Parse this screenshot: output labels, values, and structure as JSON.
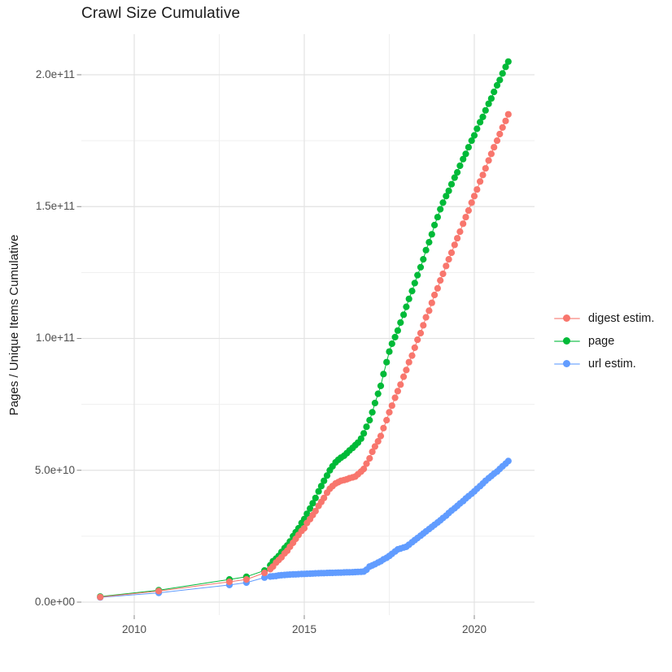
{
  "title": "Crawl Size Cumulative",
  "y_axis": {
    "label": "Pages / Unique Items Cumulative",
    "tick_labels": [
      "0.0e+00",
      "5.0e+10",
      "1.0e+11",
      "1.5e+11",
      "2.0e+11"
    ]
  },
  "x_axis": {
    "tick_labels": [
      "2010",
      "2015",
      "2020"
    ]
  },
  "legend": {
    "items": [
      {
        "label": "digest estim.",
        "color": "#F8766D"
      },
      {
        "label": "page",
        "color": "#00BA38"
      },
      {
        "label": "url estim.",
        "color": "#619CFF"
      }
    ]
  },
  "chart_data": {
    "type": "line",
    "title": "Crawl Size Cumulative",
    "xlabel": "",
    "ylabel": "Pages / Unique Items Cumulative",
    "x_unit": "year (decimal)",
    "value_unit": "billions of items (1e9)",
    "xlim": [
      2008.45,
      2021.8
    ],
    "ylim_billions": [
      0,
      216
    ],
    "x_major_ticks": [
      2010,
      2015,
      2020
    ],
    "x_minor_ticks": [
      2012.5,
      2017.5
    ],
    "y_major_ticks_billions": [
      0,
      50,
      100,
      150,
      200
    ],
    "y_minor_ticks_billions": [
      25,
      75,
      125,
      175
    ],
    "grid": true,
    "legend_position": "right",
    "marker": "point",
    "draw_order": [
      1,
      2,
      0
    ],
    "series": [
      {
        "name": "digest estim.",
        "color": "#F8766D",
        "points": [
          [
            2009.0,
            1.9
          ],
          [
            2010.72,
            4.2
          ],
          [
            2012.8,
            7.7
          ],
          [
            2013.3,
            8.6
          ],
          [
            2013.83,
            11.1
          ],
          [
            2014.0,
            12.5
          ],
          [
            2014.08,
            13.5
          ],
          [
            2014.17,
            15.0
          ],
          [
            2014.25,
            16.0
          ],
          [
            2014.33,
            17.0
          ],
          [
            2014.42,
            18.5
          ],
          [
            2014.5,
            19.5
          ],
          [
            2014.58,
            21.0
          ],
          [
            2014.67,
            22.5
          ],
          [
            2014.75,
            24.0
          ],
          [
            2014.83,
            25.5
          ],
          [
            2014.92,
            27.0
          ],
          [
            2015.0,
            28.0
          ],
          [
            2015.08,
            30.0
          ],
          [
            2015.17,
            31.5
          ],
          [
            2015.25,
            33.0
          ],
          [
            2015.33,
            34.5
          ],
          [
            2015.42,
            36.5
          ],
          [
            2015.5,
            38.0
          ],
          [
            2015.58,
            39.5
          ],
          [
            2015.67,
            41.5
          ],
          [
            2015.75,
            43.0
          ],
          [
            2015.83,
            44.0
          ],
          [
            2015.92,
            45.0
          ],
          [
            2016.0,
            45.5
          ],
          [
            2016.08,
            46.0
          ],
          [
            2016.17,
            46.3
          ],
          [
            2016.25,
            46.6
          ],
          [
            2016.33,
            47.0
          ],
          [
            2016.42,
            47.3
          ],
          [
            2016.5,
            47.6
          ],
          [
            2016.58,
            48.5
          ],
          [
            2016.67,
            49.5
          ],
          [
            2016.75,
            50.5
          ],
          [
            2016.83,
            52.5
          ],
          [
            2016.92,
            54.5
          ],
          [
            2017.0,
            57.0
          ],
          [
            2017.08,
            59.0
          ],
          [
            2017.17,
            61.0
          ],
          [
            2017.25,
            63.0
          ],
          [
            2017.33,
            66.0
          ],
          [
            2017.42,
            69.0
          ],
          [
            2017.5,
            72.0
          ],
          [
            2017.58,
            74.5
          ],
          [
            2017.67,
            77.5
          ],
          [
            2017.75,
            80.0
          ],
          [
            2017.83,
            82.5
          ],
          [
            2017.92,
            85.5
          ],
          [
            2018.0,
            88.0
          ],
          [
            2018.08,
            91.0
          ],
          [
            2018.17,
            93.5
          ],
          [
            2018.25,
            96.5
          ],
          [
            2018.33,
            99.5
          ],
          [
            2018.42,
            102.0
          ],
          [
            2018.5,
            105.0
          ],
          [
            2018.58,
            108.0
          ],
          [
            2018.67,
            110.5
          ],
          [
            2018.75,
            113.5
          ],
          [
            2018.83,
            116.5
          ],
          [
            2018.92,
            119.0
          ],
          [
            2019.0,
            122.0
          ],
          [
            2019.08,
            124.5
          ],
          [
            2019.17,
            127.5
          ],
          [
            2019.25,
            130.0
          ],
          [
            2019.33,
            132.5
          ],
          [
            2019.42,
            135.5
          ],
          [
            2019.5,
            138.0
          ],
          [
            2019.58,
            140.5
          ],
          [
            2019.67,
            143.5
          ],
          [
            2019.75,
            146.0
          ],
          [
            2019.83,
            148.5
          ],
          [
            2019.92,
            151.5
          ],
          [
            2020.0,
            154.0
          ],
          [
            2020.08,
            156.5
          ],
          [
            2020.17,
            159.5
          ],
          [
            2020.25,
            162.0
          ],
          [
            2020.33,
            164.5
          ],
          [
            2020.42,
            167.5
          ],
          [
            2020.5,
            170.0
          ],
          [
            2020.58,
            172.5
          ],
          [
            2020.67,
            175.0
          ],
          [
            2020.75,
            177.5
          ],
          [
            2020.83,
            180.0
          ],
          [
            2020.92,
            182.5
          ],
          [
            2021.0,
            185.0
          ]
        ]
      },
      {
        "name": "page",
        "color": "#00BA38",
        "points": [
          [
            2009.0,
            2.1
          ],
          [
            2010.72,
            4.5
          ],
          [
            2012.8,
            8.6
          ],
          [
            2013.3,
            9.6
          ],
          [
            2013.83,
            12.0
          ],
          [
            2014.0,
            14.0
          ],
          [
            2014.08,
            15.5
          ],
          [
            2014.17,
            16.5
          ],
          [
            2014.25,
            17.5
          ],
          [
            2014.33,
            19.0
          ],
          [
            2014.42,
            20.5
          ],
          [
            2014.5,
            21.5
          ],
          [
            2014.58,
            23.0
          ],
          [
            2014.67,
            25.0
          ],
          [
            2014.75,
            26.5
          ],
          [
            2014.83,
            28.0
          ],
          [
            2014.92,
            30.0
          ],
          [
            2015.0,
            31.5
          ],
          [
            2015.08,
            33.5
          ],
          [
            2015.17,
            35.5
          ],
          [
            2015.25,
            37.5
          ],
          [
            2015.33,
            39.5
          ],
          [
            2015.42,
            42.0
          ],
          [
            2015.5,
            44.0
          ],
          [
            2015.58,
            46.0
          ],
          [
            2015.67,
            48.0
          ],
          [
            2015.75,
            50.0
          ],
          [
            2015.83,
            51.5
          ],
          [
            2015.92,
            53.0
          ],
          [
            2016.0,
            54.0
          ],
          [
            2016.08,
            54.8
          ],
          [
            2016.17,
            55.5
          ],
          [
            2016.25,
            56.5
          ],
          [
            2016.33,
            57.5
          ],
          [
            2016.42,
            58.5
          ],
          [
            2016.5,
            59.5
          ],
          [
            2016.58,
            60.5
          ],
          [
            2016.67,
            62.0
          ],
          [
            2016.75,
            64.0
          ],
          [
            2016.83,
            66.5
          ],
          [
            2016.92,
            69.0
          ],
          [
            2017.0,
            72.0
          ],
          [
            2017.08,
            75.5
          ],
          [
            2017.17,
            79.0
          ],
          [
            2017.25,
            82.0
          ],
          [
            2017.33,
            86.5
          ],
          [
            2017.42,
            91.0
          ],
          [
            2017.5,
            95.0
          ],
          [
            2017.58,
            98.0
          ],
          [
            2017.67,
            100.5
          ],
          [
            2017.75,
            103.0
          ],
          [
            2017.83,
            106.0
          ],
          [
            2017.92,
            109.0
          ],
          [
            2018.0,
            112.0
          ],
          [
            2018.08,
            115.0
          ],
          [
            2018.17,
            118.0
          ],
          [
            2018.25,
            121.0
          ],
          [
            2018.33,
            124.0
          ],
          [
            2018.42,
            127.0
          ],
          [
            2018.5,
            130.0
          ],
          [
            2018.58,
            133.5
          ],
          [
            2018.67,
            136.5
          ],
          [
            2018.75,
            139.5
          ],
          [
            2018.83,
            143.0
          ],
          [
            2018.92,
            146.0
          ],
          [
            2019.0,
            149.0
          ],
          [
            2019.08,
            151.5
          ],
          [
            2019.17,
            154.0
          ],
          [
            2019.25,
            156.0
          ],
          [
            2019.33,
            158.5
          ],
          [
            2019.42,
            161.0
          ],
          [
            2019.5,
            163.0
          ],
          [
            2019.58,
            165.5
          ],
          [
            2019.67,
            168.0
          ],
          [
            2019.75,
            170.0
          ],
          [
            2019.83,
            172.5
          ],
          [
            2019.92,
            175.0
          ],
          [
            2020.0,
            177.0
          ],
          [
            2020.08,
            179.5
          ],
          [
            2020.17,
            182.0
          ],
          [
            2020.25,
            184.0
          ],
          [
            2020.33,
            186.5
          ],
          [
            2020.42,
            189.0
          ],
          [
            2020.5,
            191.0
          ],
          [
            2020.58,
            193.5
          ],
          [
            2020.67,
            196.0
          ],
          [
            2020.75,
            198.0
          ],
          [
            2020.83,
            200.5
          ],
          [
            2020.92,
            203.0
          ],
          [
            2021.0,
            205.0
          ]
        ]
      },
      {
        "name": "url estim.",
        "color": "#619CFF",
        "points": [
          [
            2009.0,
            1.8
          ],
          [
            2010.72,
            3.5
          ],
          [
            2012.8,
            6.5
          ],
          [
            2013.3,
            7.4
          ],
          [
            2013.83,
            9.3
          ],
          [
            2014.0,
            9.7
          ],
          [
            2014.08,
            9.8
          ],
          [
            2014.17,
            9.9
          ],
          [
            2014.25,
            10.1
          ],
          [
            2014.33,
            10.2
          ],
          [
            2014.42,
            10.3
          ],
          [
            2014.5,
            10.4
          ],
          [
            2014.58,
            10.45
          ],
          [
            2014.67,
            10.5
          ],
          [
            2014.75,
            10.55
          ],
          [
            2014.83,
            10.6
          ],
          [
            2014.92,
            10.65
          ],
          [
            2015.0,
            10.7
          ],
          [
            2015.08,
            10.75
          ],
          [
            2015.17,
            10.8
          ],
          [
            2015.25,
            10.85
          ],
          [
            2015.33,
            10.9
          ],
          [
            2015.42,
            10.95
          ],
          [
            2015.5,
            11.0
          ],
          [
            2015.58,
            11.0
          ],
          [
            2015.67,
            11.05
          ],
          [
            2015.75,
            11.1
          ],
          [
            2015.83,
            11.1
          ],
          [
            2015.92,
            11.15
          ],
          [
            2016.0,
            11.2
          ],
          [
            2016.08,
            11.2
          ],
          [
            2016.17,
            11.25
          ],
          [
            2016.25,
            11.3
          ],
          [
            2016.33,
            11.3
          ],
          [
            2016.42,
            11.35
          ],
          [
            2016.5,
            11.4
          ],
          [
            2016.58,
            11.45
          ],
          [
            2016.67,
            11.5
          ],
          [
            2016.75,
            11.6
          ],
          [
            2016.83,
            12.3
          ],
          [
            2016.92,
            13.5
          ],
          [
            2017.0,
            13.9
          ],
          [
            2017.08,
            14.4
          ],
          [
            2017.17,
            15.0
          ],
          [
            2017.25,
            15.5
          ],
          [
            2017.33,
            16.2
          ],
          [
            2017.42,
            16.8
          ],
          [
            2017.5,
            17.5
          ],
          [
            2017.58,
            18.3
          ],
          [
            2017.67,
            19.2
          ],
          [
            2017.75,
            20.0
          ],
          [
            2017.83,
            20.3
          ],
          [
            2017.92,
            20.7
          ],
          [
            2018.0,
            21.0
          ],
          [
            2018.08,
            21.8
          ],
          [
            2018.17,
            22.7
          ],
          [
            2018.25,
            23.5
          ],
          [
            2018.33,
            24.3
          ],
          [
            2018.42,
            25.2
          ],
          [
            2018.5,
            26.0
          ],
          [
            2018.58,
            26.8
          ],
          [
            2018.67,
            27.7
          ],
          [
            2018.75,
            28.5
          ],
          [
            2018.83,
            29.3
          ],
          [
            2018.92,
            30.2
          ],
          [
            2019.0,
            31.0
          ],
          [
            2019.08,
            31.9
          ],
          [
            2019.17,
            32.8
          ],
          [
            2019.25,
            33.8
          ],
          [
            2019.33,
            34.7
          ],
          [
            2019.42,
            35.6
          ],
          [
            2019.5,
            36.5
          ],
          [
            2019.58,
            37.4
          ],
          [
            2019.67,
            38.3
          ],
          [
            2019.75,
            39.3
          ],
          [
            2019.83,
            40.2
          ],
          [
            2019.92,
            41.1
          ],
          [
            2020.0,
            42.0
          ],
          [
            2020.08,
            43.0
          ],
          [
            2020.17,
            44.0
          ],
          [
            2020.25,
            45.0
          ],
          [
            2020.33,
            46.0
          ],
          [
            2020.42,
            47.0
          ],
          [
            2020.5,
            47.8
          ],
          [
            2020.58,
            48.7
          ],
          [
            2020.67,
            49.5
          ],
          [
            2020.75,
            50.5
          ],
          [
            2020.83,
            51.5
          ],
          [
            2020.92,
            52.5
          ],
          [
            2021.0,
            53.5
          ]
        ]
      }
    ]
  }
}
